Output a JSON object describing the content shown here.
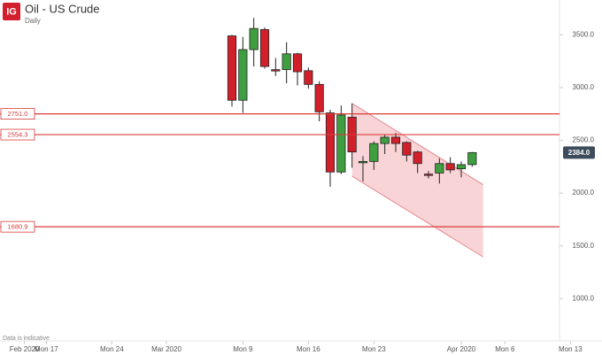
{
  "chart_data": {
    "type": "candlestick",
    "title": "Oil - US Crude",
    "subtitle": "Daily",
    "logo": "IG",
    "footnote": "Data is indicative",
    "up_color": "#3f9e3f",
    "down_color": "#d2202a",
    "line_color": "#d83c3c",
    "channel_color": "#f7c6c8",
    "xlim": [
      "2020-02-12",
      "2020-04-12"
    ],
    "xticks": [
      {
        "value": "2020-02-14",
        "label": "Feb 2020"
      },
      {
        "value": "2020-02-17",
        "label": "Mon 17"
      },
      {
        "value": "2020-02-24",
        "label": "Mon 24"
      },
      {
        "value": "2020-03-01",
        "label": "Mar 2020"
      },
      {
        "value": "2020-03-09",
        "label": "Mon 9"
      },
      {
        "value": "2020-03-16",
        "label": "Mon 16"
      },
      {
        "value": "2020-03-23",
        "label": "Mon 23"
      },
      {
        "value": "2020-04-01",
        "label": "Apr 2020"
      },
      {
        "value": "2020-04-06",
        "label": "Mon 6"
      },
      {
        "value": "2020-04-13",
        "label": "Mon 13"
      }
    ],
    "ylim": [
      600,
      3830
    ],
    "yticks": [
      {
        "value": 1000,
        "label": "1000.0"
      },
      {
        "value": 1500,
        "label": "1500.0"
      },
      {
        "value": 2000,
        "label": "2000.0"
      },
      {
        "value": 2500,
        "label": "2500.0"
      },
      {
        "value": 3000,
        "label": "3000.0"
      },
      {
        "value": 3500,
        "label": "3500.0"
      }
    ],
    "x": [
      "2020-03-08",
      "2020-03-09",
      "2020-03-10",
      "2020-03-11",
      "2020-03-12",
      "2020-03-13",
      "2020-03-15",
      "2020-03-16",
      "2020-03-17",
      "2020-03-18",
      "2020-03-19",
      "2020-03-20",
      "2020-03-22",
      "2020-03-23",
      "2020-03-24",
      "2020-03-25",
      "2020-03-26",
      "2020-03-27",
      "2020-03-29",
      "2020-03-30",
      "2020-03-31",
      "2020-04-01",
      "2020-04-02"
    ],
    "open": [
      3490,
      2880,
      3360,
      3550,
      3170,
      3170,
      3320,
      3160,
      3030,
      2760,
      2200,
      2720,
      2290,
      2300,
      2470,
      2530,
      2480,
      2390,
      2180,
      2190,
      2280,
      2230,
      2270
    ],
    "high": [
      3500,
      3480,
      3660,
      3570,
      3280,
      3430,
      3330,
      3190,
      3060,
      2790,
      2830,
      2850,
      2350,
      2490,
      2550,
      2570,
      2490,
      2400,
      2210,
      2330,
      2340,
      2300,
      2390
    ],
    "low": [
      2820,
      2760,
      3200,
      3180,
      3110,
      3040,
      3020,
      2990,
      2680,
      2060,
      2180,
      2240,
      2110,
      2220,
      2370,
      2390,
      2300,
      2190,
      2140,
      2090,
      2190,
      2150,
      2250
    ],
    "close": [
      2880,
      3360,
      3560,
      3200,
      3160,
      3320,
      3150,
      3030,
      2770,
      2200,
      2740,
      2390,
      2300,
      2470,
      2530,
      2470,
      2360,
      2280,
      2170,
      2280,
      2220,
      2270,
      2384
    ],
    "levels": [
      {
        "value": 2751.0,
        "label": "2751.0"
      },
      {
        "value": 2554.3,
        "label": "2554.3"
      },
      {
        "value": 1680.9,
        "label": "1680.9"
      }
    ],
    "last_price": {
      "value": 2384.0,
      "label": "2384.0"
    },
    "channel": {
      "x": [
        "2020-03-20",
        "2020-04-03"
      ],
      "upper": [
        2850,
        2080
      ],
      "lower": [
        2160,
        1395
      ]
    }
  }
}
